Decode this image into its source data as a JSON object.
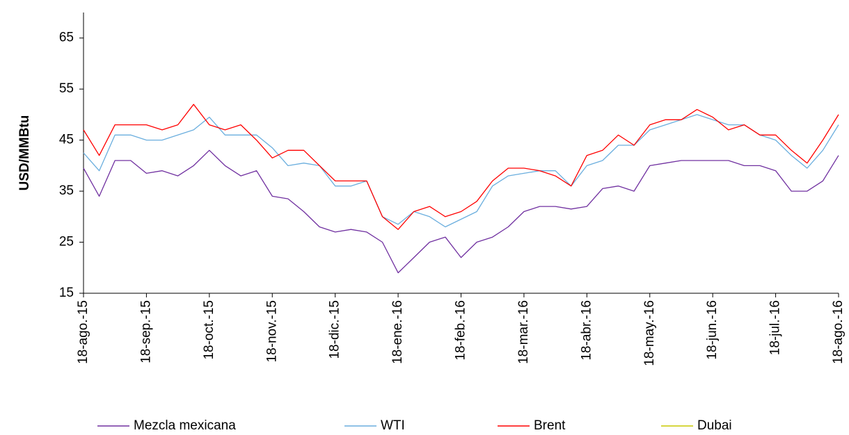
{
  "chart_data": {
    "type": "line",
    "y_label": "USD/MMBtu",
    "categories": [
      "18-ago.-15",
      null,
      null,
      null,
      "18-sep.-15",
      null,
      null,
      null,
      "18-oct.-15",
      null,
      null,
      null,
      "18-nov.-15",
      null,
      null,
      null,
      "18-dic.-15",
      null,
      null,
      null,
      "18-ene.-16",
      null,
      null,
      null,
      "18-feb.-16",
      null,
      null,
      null,
      "18-mar.-16",
      null,
      null,
      null,
      "18-abr.-16",
      null,
      null,
      null,
      "18-may.-16",
      null,
      null,
      null,
      "18-jun.-16",
      null,
      null,
      null,
      "18-jul.-16",
      null,
      null,
      null,
      "18-ago.-16"
    ],
    "series": [
      {
        "name": "Mezcla mexicana",
        "color": "#7030a0",
        "values": [
          39.5,
          34,
          41,
          41,
          38.5,
          39,
          38,
          40,
          43,
          40,
          38,
          39,
          34,
          33.5,
          31,
          28,
          27,
          27.5,
          27,
          25,
          19,
          22,
          25,
          26,
          22,
          25,
          26,
          28,
          31,
          32,
          32,
          31.5,
          32,
          35.5,
          36,
          35,
          40,
          40.5,
          41,
          41,
          41,
          41,
          40,
          40,
          39,
          35,
          35,
          37,
          42
        ]
      },
      {
        "name": "WTI",
        "color": "#6aaede",
        "values": [
          42.5,
          39,
          46,
          46,
          45,
          45,
          46,
          47,
          49.5,
          46,
          46,
          46,
          43.5,
          40,
          40.5,
          40,
          36,
          36,
          37,
          30,
          28.5,
          31,
          30,
          28,
          29.5,
          31,
          36,
          38,
          38.5,
          39,
          39,
          36,
          40,
          41,
          44,
          44,
          47,
          48,
          49,
          50,
          49,
          48,
          48,
          46,
          45,
          42,
          39.5,
          43,
          48
        ]
      },
      {
        "name": "Brent",
        "color": "#ff0000",
        "values": [
          47,
          42,
          48,
          48,
          48,
          47,
          48,
          52,
          48,
          47,
          48,
          45,
          41.5,
          43,
          43,
          40,
          37,
          37,
          37,
          30,
          27.5,
          31,
          32,
          30,
          31,
          33,
          37,
          39.5,
          39.5,
          39,
          38,
          36,
          42,
          43,
          46,
          44,
          48,
          49,
          49,
          51,
          49.5,
          47,
          48,
          46,
          46,
          43,
          40.5,
          45,
          50
        ]
      },
      {
        "name": "Dubai",
        "color": "#c8c800",
        "values": [
          null,
          null,
          null,
          null,
          null,
          null,
          null,
          null,
          null,
          null,
          null,
          null,
          null,
          null,
          null,
          null,
          null,
          null,
          null,
          null,
          null,
          null,
          null,
          null,
          null,
          null,
          null,
          null,
          null,
          null,
          null,
          null,
          null,
          null,
          null,
          null,
          null,
          null,
          null,
          null,
          null,
          null,
          null,
          null,
          null,
          null,
          null,
          null,
          null
        ]
      }
    ],
    "ylim": [
      15,
      70
    ],
    "yticks": [
      15,
      25,
      35,
      45,
      55,
      65
    ],
    "grid": false
  }
}
